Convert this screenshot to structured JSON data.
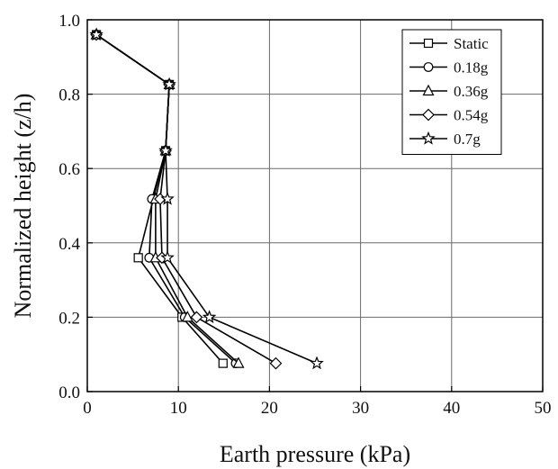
{
  "chart_data": {
    "type": "line",
    "xlabel": "Earth pressure (kPa)",
    "ylabel": "Normalized height (z/h)",
    "xlim": [
      0,
      50
    ],
    "ylim": [
      0,
      1.0
    ],
    "x_ticks": [
      "0",
      "10",
      "20",
      "30",
      "40",
      "50"
    ],
    "y_ticks": [
      "0.0",
      "0.2",
      "0.4",
      "0.6",
      "0.8",
      "1.0"
    ],
    "grid": true,
    "legend_position": "top-right",
    "series": [
      {
        "name": "Static",
        "marker": "square",
        "points": [
          {
            "x": 1.0,
            "y": 0.96
          },
          {
            "x": 9.0,
            "y": 0.826
          },
          {
            "x": 8.6,
            "y": 0.648
          },
          {
            "x": 5.6,
            "y": 0.36
          },
          {
            "x": 10.4,
            "y": 0.2
          },
          {
            "x": 14.9,
            "y": 0.076
          }
        ]
      },
      {
        "name": "0.18g",
        "marker": "circle",
        "points": [
          {
            "x": 1.0,
            "y": 0.96
          },
          {
            "x": 9.0,
            "y": 0.826
          },
          {
            "x": 8.6,
            "y": 0.648
          },
          {
            "x": 7.1,
            "y": 0.518
          },
          {
            "x": 6.8,
            "y": 0.36
          },
          {
            "x": 10.7,
            "y": 0.2
          },
          {
            "x": 16.3,
            "y": 0.076
          }
        ]
      },
      {
        "name": "0.36g",
        "marker": "triangle",
        "points": [
          {
            "x": 1.0,
            "y": 0.96
          },
          {
            "x": 9.0,
            "y": 0.826
          },
          {
            "x": 8.6,
            "y": 0.648
          },
          {
            "x": 7.5,
            "y": 0.518
          },
          {
            "x": 7.5,
            "y": 0.36
          },
          {
            "x": 11.0,
            "y": 0.2
          },
          {
            "x": 16.6,
            "y": 0.076
          }
        ]
      },
      {
        "name": "0.54g",
        "marker": "diamond",
        "points": [
          {
            "x": 1.0,
            "y": 0.96
          },
          {
            "x": 9.0,
            "y": 0.826
          },
          {
            "x": 8.6,
            "y": 0.648
          },
          {
            "x": 8.0,
            "y": 0.518
          },
          {
            "x": 8.2,
            "y": 0.36
          },
          {
            "x": 12.0,
            "y": 0.2
          },
          {
            "x": 20.7,
            "y": 0.076
          }
        ]
      },
      {
        "name": "0.7g",
        "marker": "star",
        "points": [
          {
            "x": 1.0,
            "y": 0.96
          },
          {
            "x": 9.0,
            "y": 0.826
          },
          {
            "x": 8.6,
            "y": 0.648
          },
          {
            "x": 8.8,
            "y": 0.518
          },
          {
            "x": 8.8,
            "y": 0.36
          },
          {
            "x": 13.4,
            "y": 0.2
          },
          {
            "x": 25.2,
            "y": 0.076
          }
        ]
      }
    ]
  }
}
